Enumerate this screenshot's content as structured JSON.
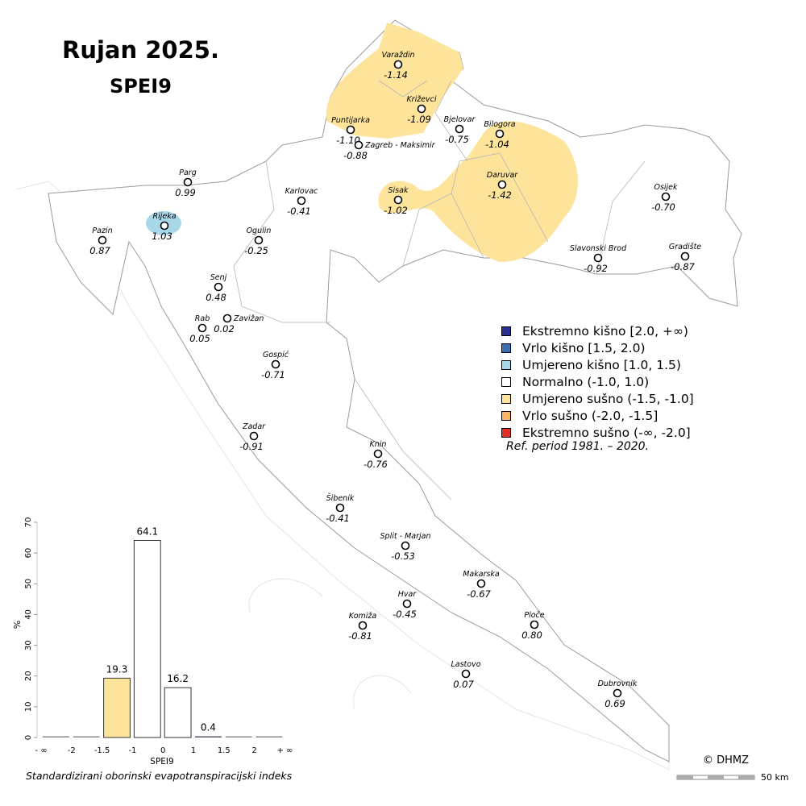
{
  "title": "Rujan 2025.",
  "index_name": "SPEI9",
  "legend": [
    {
      "label": "Ekstremno kišno [2.0, +∞)",
      "color": "#2b2f8f"
    },
    {
      "label": "Vrlo kišno [1.5, 2.0)",
      "color": "#3e6fb5"
    },
    {
      "label": "Umjereno kišno [1.0, 1.5)",
      "color": "#a8d8e8"
    },
    {
      "label": "Normalno (-1.0, 1.0)",
      "color": "#ffffff"
    },
    {
      "label": "Umjereno sušno (-1.5, -1.0]",
      "color": "#fde49a"
    },
    {
      "label": "Vrlo sušno (-2.0, -1.5]",
      "color": "#fbb465"
    },
    {
      "label": "Ekstremno sušno (-∞, -2.0]",
      "color": "#e03127"
    }
  ],
  "ref_period": "Ref. period 1981. – 2020.",
  "copyright": "© DHMZ",
  "scale_label": "50 km",
  "stations": [
    {
      "name": "Varaždin",
      "value": "-1.14"
    },
    {
      "name": "Križevci",
      "value": "-1.09"
    },
    {
      "name": "Puntijarka",
      "value": "-1.10"
    },
    {
      "name": "Bjelovar",
      "value": "-0.75"
    },
    {
      "name": "Bilogora",
      "value": "-1.04"
    },
    {
      "name": "Zagreb - Maksimir",
      "value": "-0.88"
    },
    {
      "name": "Parg",
      "value": "0.99"
    },
    {
      "name": "Karlovac",
      "value": "-0.41"
    },
    {
      "name": "Sisak",
      "value": "-1.02"
    },
    {
      "name": "Daruvar",
      "value": "-1.42"
    },
    {
      "name": "Osijek",
      "value": "-0.70"
    },
    {
      "name": "Pazin",
      "value": "0.87"
    },
    {
      "name": "Rijeka",
      "value": "1.03"
    },
    {
      "name": "Ogulin",
      "value": "-0.25"
    },
    {
      "name": "Slavonski Brod",
      "value": "-0.92"
    },
    {
      "name": "Gradište",
      "value": "-0.87"
    },
    {
      "name": "Senj",
      "value": "0.48"
    },
    {
      "name": "Zavižan",
      "value": "0.02"
    },
    {
      "name": "Rab",
      "value": "0.05"
    },
    {
      "name": "Gospić",
      "value": "-0.71"
    },
    {
      "name": "Zadar",
      "value": "-0.91"
    },
    {
      "name": "Knin",
      "value": "-0.76"
    },
    {
      "name": "Šibenik",
      "value": "-0.41"
    },
    {
      "name": "Split - Marjan",
      "value": "-0.53"
    },
    {
      "name": "Makarska",
      "value": "-0.67"
    },
    {
      "name": "Hvar",
      "value": "-0.45"
    },
    {
      "name": "Komiža",
      "value": "-0.81"
    },
    {
      "name": "Ploče",
      "value": "0.80"
    },
    {
      "name": "Lastovo",
      "value": "0.07"
    },
    {
      "name": "Dubrovnik",
      "value": "0.69"
    }
  ],
  "chart_data": {
    "type": "bar",
    "tick_labels": [
      "- ∞",
      "-2",
      "-1.5",
      "-1",
      "0",
      "1",
      "1.5",
      "2",
      "+ ∞"
    ],
    "values": [
      0,
      0,
      19.3,
      64.1,
      16.2,
      0.4,
      0,
      0
    ],
    "value_labels": [
      "",
      "",
      "19.3",
      "64.1",
      "16.2",
      "0.4",
      "",
      ""
    ],
    "colors": [
      "#e03127",
      "#fbb465",
      "#fde49a",
      "#ffffff",
      "#ffffff",
      "#a8d8e8",
      "#3e6fb5",
      "#2b2f8f"
    ],
    "xlabel": "SPEI9",
    "ylabel": "%",
    "ylim": [
      0,
      70
    ],
    "yticks": [
      "0",
      "10",
      "20",
      "30",
      "40",
      "50",
      "60",
      "70"
    ],
    "caption": "Standardizirani oborinski evapotranspiracijski indeks"
  }
}
